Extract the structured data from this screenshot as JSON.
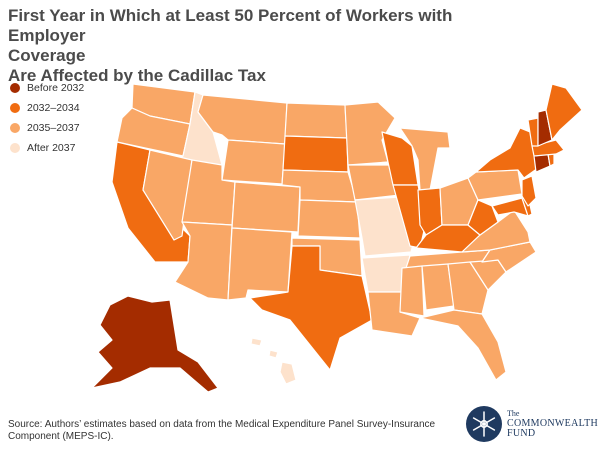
{
  "title": {
    "line1": "First Year in Which at Least 50 Percent of Workers with Employer",
    "line2": "Coverage",
    "line3": "Are Affected by the Cadillac Tax"
  },
  "legend": [
    {
      "label": "Before 2032",
      "color": "#a42c00"
    },
    {
      "label": "2032–2034",
      "color": "#f06c11"
    },
    {
      "label": "2035–2037",
      "color": "#f9a766"
    },
    {
      "label": "After 2037",
      "color": "#fde2cc"
    }
  ],
  "state_categories": {
    "WA": 2,
    "OR": 2,
    "ID": 3,
    "MT": 2,
    "WY": 2,
    "NV": 2,
    "UT": 2,
    "CO": 2,
    "AZ": 2,
    "NM": 2,
    "ND": 2,
    "SD": 1,
    "NE": 2,
    "KS": 2,
    "OK": 2,
    "TX": 1,
    "MN": 2,
    "IA": 2,
    "MO": 3,
    "AR": 3,
    "LA": 2,
    "WI": 1,
    "IL": 1,
    "MI": 2,
    "IN": 1,
    "OH": 2,
    "KY": 1,
    "TN": 2,
    "MS": 2,
    "AL": 2,
    "GA": 2,
    "FL": 2,
    "SC": 2,
    "NC": 2,
    "VA": 2,
    "WV": 1,
    "PA": 2,
    "NY": 1,
    "VT": 1,
    "NH": 0,
    "ME": 1,
    "MA": 1,
    "CT": 0,
    "RI": 1,
    "NJ": 1,
    "DE": 1,
    "MD": 1,
    "CA": 1,
    "AK": 0,
    "HI": 3
  },
  "source": "Source: Authors’ estimates based on data from the Medical Expenditure Panel Survey-Insurance Component (MEPS-IC).",
  "logo": {
    "line1": "The",
    "line2": "COMMONWEALTH",
    "line3": "FUND",
    "icon": "snowflake-seal-icon"
  }
}
